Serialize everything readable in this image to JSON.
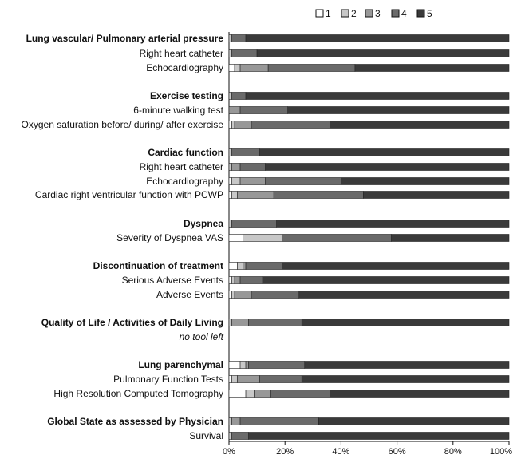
{
  "chart_data": {
    "type": "bar",
    "orientation": "horizontal",
    "stacked": true,
    "xlim": [
      0,
      100
    ],
    "x_ticks": [
      "0%",
      "20%",
      "40%",
      "60%",
      "80%",
      "100%"
    ],
    "legend": {
      "placement": "top-right",
      "entries": [
        "1",
        "2",
        "3",
        "4",
        "5"
      ]
    },
    "colors": [
      "#ffffff",
      "#c8c8c8",
      "#989898",
      "#6a6a6a",
      "#3a3a3a"
    ],
    "rows": [
      {
        "label": "Lung vascular/ Pulmonary arterial pressure",
        "header": true,
        "values": [
          0,
          1,
          0,
          5,
          94
        ]
      },
      {
        "label": "Right heart catheter",
        "values": [
          0,
          1,
          0,
          9,
          90
        ]
      },
      {
        "label": "Echocardiography",
        "values": [
          2,
          2,
          10,
          31,
          55
        ]
      },
      {
        "label": "Exercise testing",
        "header": true,
        "values": [
          0,
          1,
          0,
          5,
          94
        ]
      },
      {
        "label": "6-minute walking test",
        "values": [
          0,
          0,
          4,
          17,
          79
        ]
      },
      {
        "label": "Oxygen saturation before/ during/ after exercise",
        "values": [
          1,
          1,
          6,
          28,
          64
        ]
      },
      {
        "label": "Cardiac function",
        "header": true,
        "values": [
          0,
          1,
          0,
          10,
          89
        ]
      },
      {
        "label": "Right heart catheter",
        "values": [
          0,
          1,
          3,
          9,
          87
        ]
      },
      {
        "label": "Echocardiography",
        "values": [
          1,
          3,
          9,
          27,
          60
        ]
      },
      {
        "label": "Cardiac right ventricular function with PCWP",
        "values": [
          1,
          2,
          13,
          32,
          52
        ]
      },
      {
        "label": "Dyspnea",
        "header": true,
        "values": [
          0,
          1,
          0,
          16,
          83
        ]
      },
      {
        "label": "Severity of Dyspnea VAS",
        "values": [
          5,
          14,
          0,
          39,
          42
        ]
      },
      {
        "label": "Discontinuation of treatment",
        "header": true,
        "values": [
          3,
          2,
          1,
          13,
          81
        ]
      },
      {
        "label": "Serious Adverse Events",
        "values": [
          1,
          1,
          2,
          8,
          88
        ]
      },
      {
        "label": "Adverse Events",
        "values": [
          1,
          1,
          6,
          17,
          75
        ]
      },
      {
        "label": "Quality of Life / Activities of Daily Living",
        "header": true,
        "values": [
          0,
          1,
          6,
          19,
          74
        ]
      },
      {
        "label": "no tool left",
        "note": true,
        "values": []
      },
      {
        "label": "Lung parenchymal",
        "header": true,
        "values": [
          4,
          2,
          1,
          20,
          73
        ]
      },
      {
        "label": "Pulmonary Function Tests",
        "values": [
          1,
          2,
          8,
          15,
          74
        ]
      },
      {
        "label": "High Resolution Computed Tomography",
        "values": [
          6,
          3,
          6,
          21,
          64
        ]
      },
      {
        "label": "Global State as assessed by Physician",
        "header": true,
        "values": [
          0,
          1,
          3,
          28,
          68
        ]
      },
      {
        "label": "Survival",
        "values": [
          0,
          1,
          0,
          6,
          93
        ]
      }
    ]
  }
}
